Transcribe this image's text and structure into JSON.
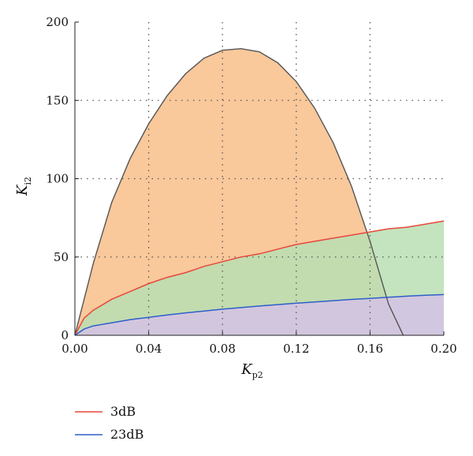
{
  "chart_data": {
    "type": "area",
    "xlabel": "K",
    "xlabel_sub": "p2",
    "ylabel": "K",
    "ylabel_sub": "i2",
    "xlim": [
      0,
      0.2
    ],
    "ylim": [
      0,
      200
    ],
    "x_ticks": [
      "0.00",
      "0.04",
      "0.08",
      "0.12",
      "0.16",
      "0.20"
    ],
    "y_ticks": [
      "0",
      "50",
      "100",
      "150",
      "200"
    ],
    "grid": "dotted",
    "legend_position": "bottom-left",
    "colors": {
      "boundary": "#555555",
      "boundary_fill": "#f9c89b",
      "s3dB": "#e8473b",
      "s3dB_fill": "#b9dfb3",
      "s23dB": "#2d5fc9",
      "s23dB_fill": "#d4c3e3"
    },
    "boundary": {
      "x": [
        0.0,
        0.01,
        0.02,
        0.03,
        0.04,
        0.05,
        0.06,
        0.07,
        0.08,
        0.09,
        0.1,
        0.11,
        0.12,
        0.13,
        0.14,
        0.15,
        0.16,
        0.17,
        0.178
      ],
      "y": [
        0,
        46,
        85,
        113,
        135,
        153,
        167,
        177,
        182,
        183,
        181,
        174,
        162,
        145,
        123,
        95,
        60,
        20,
        0
      ]
    },
    "series": [
      {
        "name": "3dB",
        "x": [
          0.0,
          0.005,
          0.01,
          0.02,
          0.03,
          0.04,
          0.05,
          0.06,
          0.07,
          0.08,
          0.09,
          0.1,
          0.11,
          0.12,
          0.13,
          0.14,
          0.15,
          0.16,
          0.17,
          0.18,
          0.19,
          0.2
        ],
        "y": [
          0,
          11,
          16,
          23,
          28,
          33,
          37,
          40,
          44,
          47,
          50,
          52,
          55,
          58,
          60,
          62,
          64,
          66,
          68,
          69,
          71,
          73
        ]
      },
      {
        "name": "23dB",
        "x": [
          0.0,
          0.005,
          0.01,
          0.02,
          0.03,
          0.04,
          0.05,
          0.06,
          0.07,
          0.08,
          0.09,
          0.1,
          0.11,
          0.12,
          0.13,
          0.14,
          0.15,
          0.16,
          0.17,
          0.18,
          0.19,
          0.2
        ],
        "y": [
          0,
          4,
          6,
          8,
          10,
          11.5,
          13,
          14.3,
          15.5,
          16.7,
          17.7,
          18.7,
          19.6,
          20.5,
          21.3,
          22.1,
          22.9,
          23.6,
          24.3,
          25,
          25.6,
          26
        ]
      }
    ]
  }
}
